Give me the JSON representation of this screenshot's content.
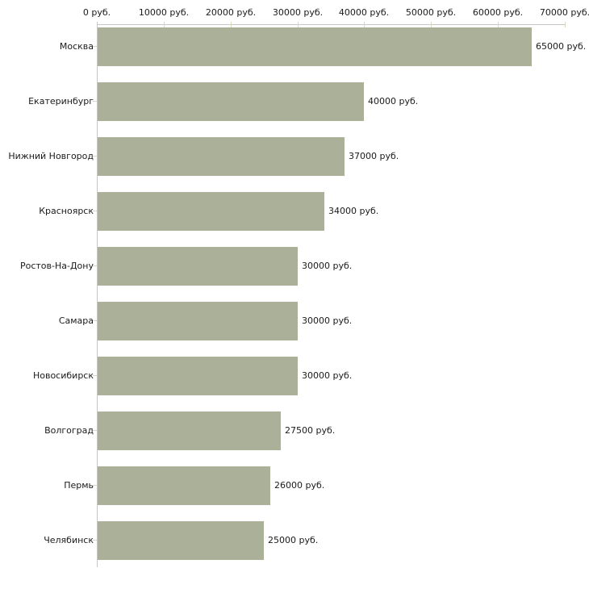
{
  "chart_data": {
    "type": "bar",
    "orientation": "horizontal",
    "title": "",
    "categories": [
      "Москва",
      "Екатеринбург",
      "Нижний Новгород",
      "Красноярск",
      "Ростов-На-Дону",
      "Самара",
      "Новосибирск",
      "Волгоград",
      "Пермь",
      "Челябинск"
    ],
    "values": [
      65000,
      40000,
      37000,
      34000,
      30000,
      30000,
      30000,
      27500,
      26000,
      25000
    ],
    "value_labels": [
      "65000 руб.",
      "40000 руб.",
      "37000 руб.",
      "34000 руб.",
      "30000 руб.",
      "30000 руб.",
      "30000 руб.",
      "27500 руб.",
      "26000 руб.",
      "25000 руб."
    ],
    "unit": "руб.",
    "xlim": [
      0,
      70000
    ],
    "x_tick_step": 10000,
    "x_tick_values": [
      0,
      10000,
      20000,
      30000,
      40000,
      50000,
      60000,
      70000
    ],
    "x_tick_labels": [
      "0 руб.",
      "10000 руб.",
      "20000 руб.",
      "30000 руб.",
      "40000 руб.",
      "50000 руб.",
      "60000 руб.",
      "70000 руб."
    ],
    "axis_position": "top",
    "grid": false,
    "legend": false,
    "colors": {
      "bar": "#abb198",
      "axis_line": "#c6c6c6",
      "tick": "#d8dabf",
      "text": "#1a1a1a",
      "background": "#ffffff"
    }
  }
}
